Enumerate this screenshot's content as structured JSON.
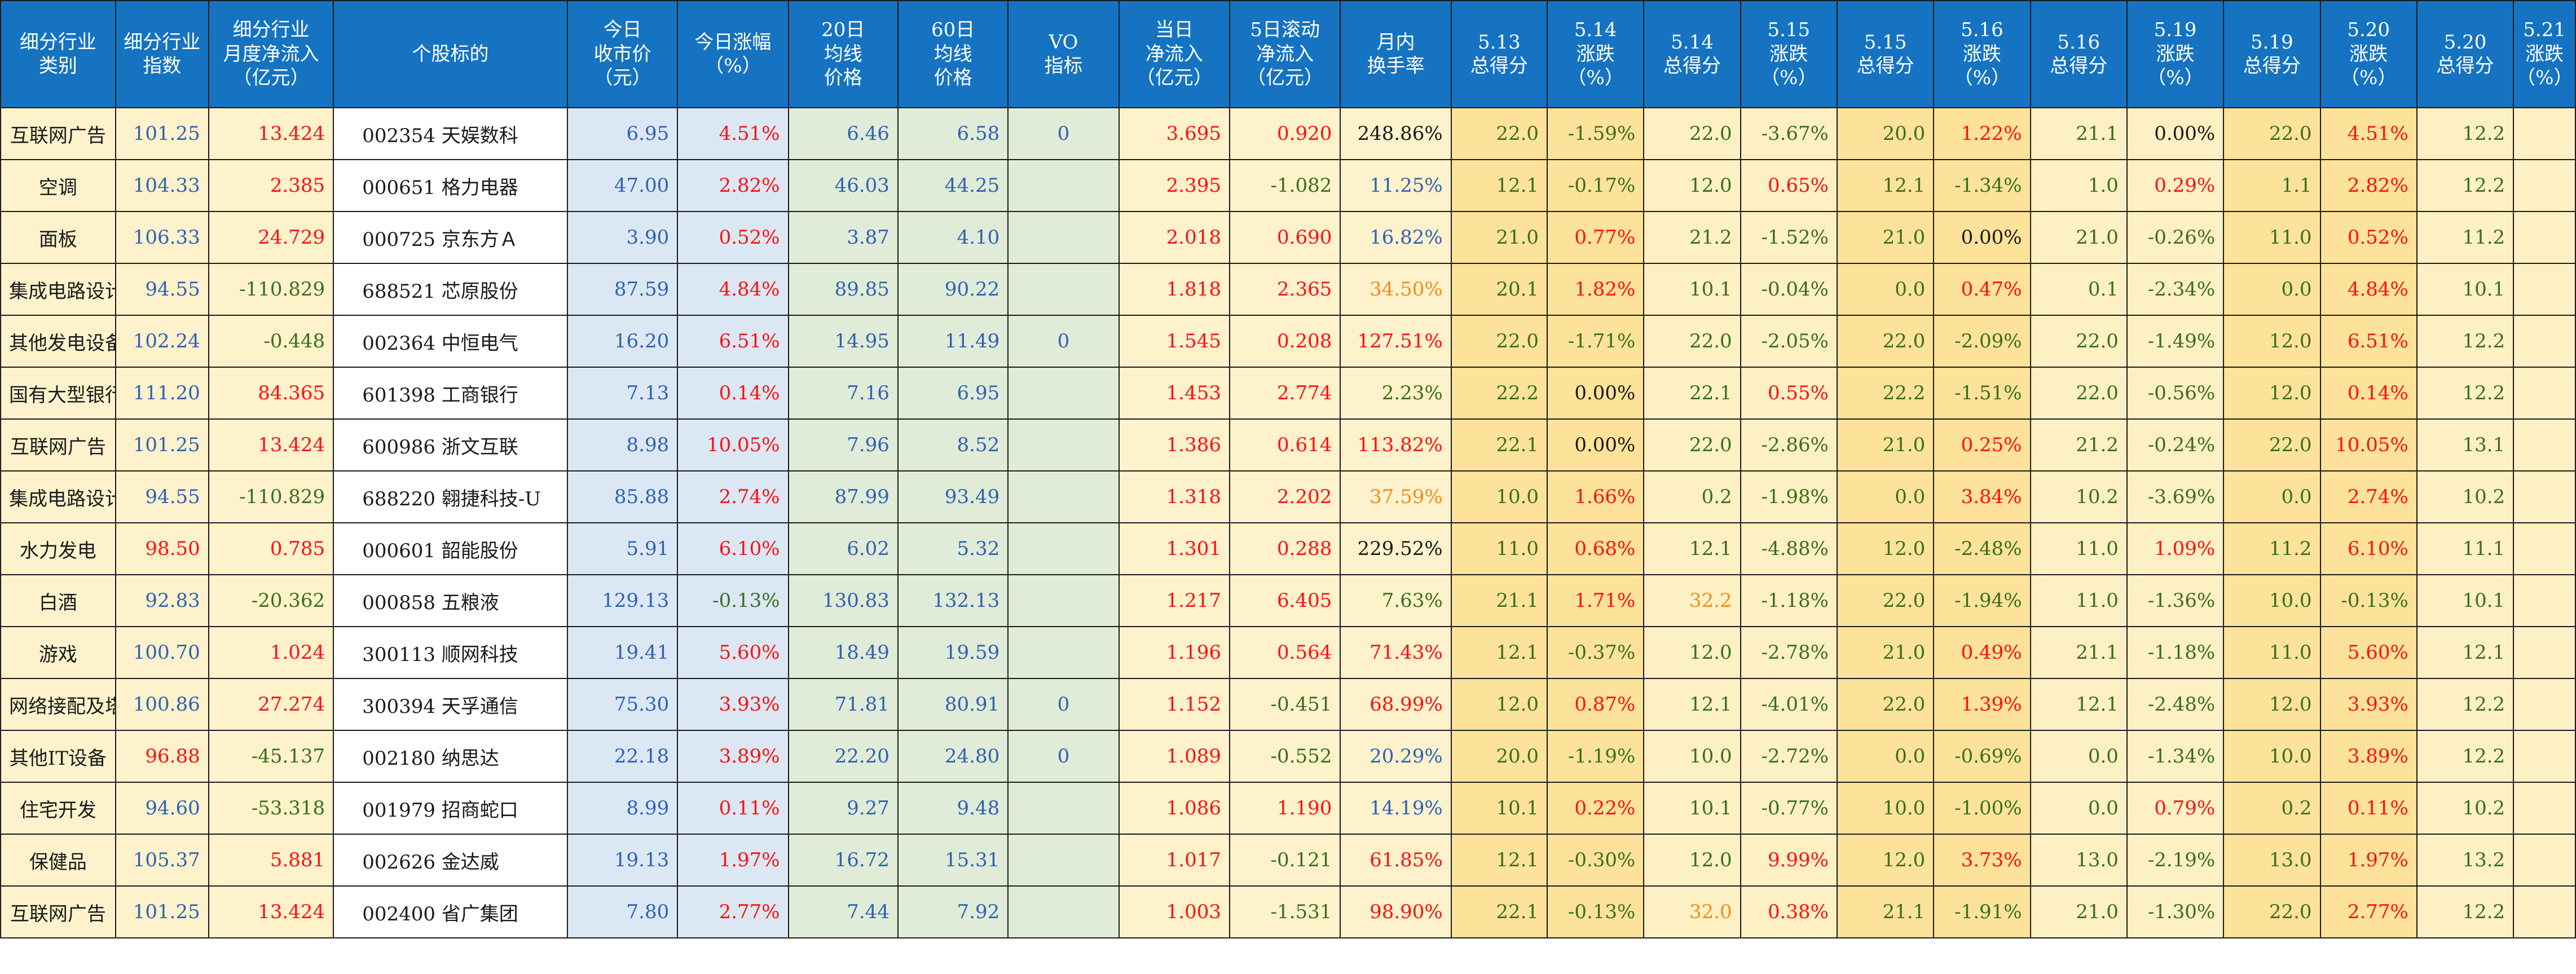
{
  "headers": [
    "细分行业\n类别",
    "细分行业\n指数",
    "细分行业\n月度净流入\n（亿元）",
    "个股标的",
    "今日\n收市价\n（元）",
    "今日涨幅\n（%）",
    "20日\n均线\n价格",
    "60日\n均线\n价格",
    "VO\n指标",
    "当日\n净流入\n（亿元）",
    "5日滚动\n净流入\n（亿元）",
    "月内\n换手率",
    "5.13\n总得分",
    "5.14\n涨跌\n（%）",
    "5.14\n总得分",
    "5.15\n涨跌\n（%）",
    "5.15\n总得分",
    "5.16\n涨跌\n（%）",
    "5.16\n总得分",
    "5.19\n涨跌\n（%）",
    "5.19\n总得分",
    "5.20\n涨跌\n（%）",
    "5.20\n总得分",
    "5.21\n涨跌\n（%）"
  ],
  "rows": [
    {
      "category": "互联网广告",
      "index": "101.25",
      "month_inflow": "13.424",
      "stock": "002354 天娱数科",
      "close": "6.95",
      "change": "4.51%",
      "ma20": "6.46",
      "ma60": "6.58",
      "vo": "0",
      "day_inflow": "3.695",
      "inflow_5d": "0.920",
      "turnover": "248.86%",
      "s513": "22.0",
      "c514": "-1.59%",
      "s514": "22.0",
      "c515": "-3.67%",
      "s515": "20.0",
      "c516": "1.22%",
      "s516": "21.1",
      "c519": "0.00%",
      "s519": "22.0",
      "c520": "4.51%",
      "s520": "12.2",
      "c521": ""
    },
    {
      "category": "空调",
      "index": "104.33",
      "month_inflow": "2.385",
      "stock": "000651 格力电器",
      "close": "47.00",
      "change": "2.82%",
      "ma20": "46.03",
      "ma60": "44.25",
      "vo": "",
      "day_inflow": "2.395",
      "inflow_5d": "-1.082",
      "turnover": "11.25%",
      "s513": "12.1",
      "c514": "-0.17%",
      "s514": "12.0",
      "c515": "0.65%",
      "s515": "12.1",
      "c516": "-1.34%",
      "s516": "1.0",
      "c519": "0.29%",
      "s519": "1.1",
      "c520": "2.82%",
      "s520": "12.2",
      "c521": ""
    },
    {
      "category": "面板",
      "index": "106.33",
      "month_inflow": "24.729",
      "stock": "000725 京东方Ａ",
      "close": "3.90",
      "change": "0.52%",
      "ma20": "3.87",
      "ma60": "4.10",
      "vo": "",
      "day_inflow": "2.018",
      "inflow_5d": "0.690",
      "turnover": "16.82%",
      "s513": "21.0",
      "c514": "0.77%",
      "s514": "21.2",
      "c515": "-1.52%",
      "s515": "21.0",
      "c516": "0.00%",
      "s516": "21.0",
      "c519": "-0.26%",
      "s519": "11.0",
      "c520": "0.52%",
      "s520": "11.2",
      "c521": ""
    },
    {
      "category": "集成电路设计",
      "index": "94.55",
      "month_inflow": "-110.829",
      "stock": "688521 芯原股份",
      "close": "87.59",
      "change": "4.84%",
      "ma20": "89.85",
      "ma60": "90.22",
      "vo": "",
      "day_inflow": "1.818",
      "inflow_5d": "2.365",
      "turnover": "34.50%",
      "s513": "20.1",
      "c514": "1.82%",
      "s514": "10.1",
      "c515": "-0.04%",
      "s515": "0.0",
      "c516": "0.47%",
      "s516": "0.1",
      "c519": "-2.34%",
      "s519": "0.0",
      "c520": "4.84%",
      "s520": "10.1",
      "c521": ""
    },
    {
      "category": "其他发电设备",
      "index": "102.24",
      "month_inflow": "-0.448",
      "stock": "002364 中恒电气",
      "close": "16.20",
      "change": "6.51%",
      "ma20": "14.95",
      "ma60": "11.49",
      "vo": "0",
      "day_inflow": "1.545",
      "inflow_5d": "0.208",
      "turnover": "127.51%",
      "s513": "22.0",
      "c514": "-1.71%",
      "s514": "22.0",
      "c515": "-2.05%",
      "s515": "22.0",
      "c516": "-2.09%",
      "s516": "22.0",
      "c519": "-1.49%",
      "s519": "12.0",
      "c520": "6.51%",
      "s520": "12.2",
      "c521": ""
    },
    {
      "category": "国有大型银行",
      "index": "111.20",
      "month_inflow": "84.365",
      "stock": "601398 工商银行",
      "close": "7.13",
      "change": "0.14%",
      "ma20": "7.16",
      "ma60": "6.95",
      "vo": "",
      "day_inflow": "1.453",
      "inflow_5d": "2.774",
      "turnover": "2.23%",
      "s513": "22.2",
      "c514": "0.00%",
      "s514": "22.1",
      "c515": "0.55%",
      "s515": "22.2",
      "c516": "-1.51%",
      "s516": "22.0",
      "c519": "-0.56%",
      "s519": "12.0",
      "c520": "0.14%",
      "s520": "12.2",
      "c521": ""
    },
    {
      "category": "互联网广告",
      "index": "101.25",
      "month_inflow": "13.424",
      "stock": "600986 浙文互联",
      "close": "8.98",
      "change": "10.05%",
      "ma20": "7.96",
      "ma60": "8.52",
      "vo": "",
      "day_inflow": "1.386",
      "inflow_5d": "0.614",
      "turnover": "113.82%",
      "s513": "22.1",
      "c514": "0.00%",
      "s514": "22.0",
      "c515": "-2.86%",
      "s515": "21.0",
      "c516": "0.25%",
      "s516": "21.2",
      "c519": "-0.24%",
      "s519": "22.0",
      "c520": "10.05%",
      "s520": "13.1",
      "c521": ""
    },
    {
      "category": "集成电路设计",
      "index": "94.55",
      "month_inflow": "-110.829",
      "stock": "688220 翱捷科技-U",
      "close": "85.88",
      "change": "2.74%",
      "ma20": "87.99",
      "ma60": "93.49",
      "vo": "",
      "day_inflow": "1.318",
      "inflow_5d": "2.202",
      "turnover": "37.59%",
      "s513": "10.0",
      "c514": "1.66%",
      "s514": "0.2",
      "c515": "-1.98%",
      "s515": "0.0",
      "c516": "3.84%",
      "s516": "10.2",
      "c519": "-3.69%",
      "s519": "0.0",
      "c520": "2.74%",
      "s520": "10.2",
      "c521": ""
    },
    {
      "category": "水力发电",
      "index": "98.50",
      "month_inflow": "0.785",
      "stock": "000601 韶能股份",
      "close": "5.91",
      "change": "6.10%",
      "ma20": "6.02",
      "ma60": "5.32",
      "vo": "",
      "day_inflow": "1.301",
      "inflow_5d": "0.288",
      "turnover": "229.52%",
      "s513": "11.0",
      "c514": "0.68%",
      "s514": "12.1",
      "c515": "-4.88%",
      "s515": "12.0",
      "c516": "-2.48%",
      "s516": "11.0",
      "c519": "1.09%",
      "s519": "11.2",
      "c520": "6.10%",
      "s520": "11.1",
      "c521": ""
    },
    {
      "category": "白酒",
      "index": "92.83",
      "month_inflow": "-20.362",
      "stock": "000858 五粮液",
      "close": "129.13",
      "change": "-0.13%",
      "ma20": "130.83",
      "ma60": "132.13",
      "vo": "",
      "day_inflow": "1.217",
      "inflow_5d": "6.405",
      "turnover": "7.63%",
      "s513": "21.1",
      "c514": "1.71%",
      "s514": "32.2",
      "c515": "-1.18%",
      "s515": "22.0",
      "c516": "-1.94%",
      "s516": "11.0",
      "c519": "-1.36%",
      "s519": "10.0",
      "c520": "-0.13%",
      "s520": "10.1",
      "c521": ""
    },
    {
      "category": "游戏",
      "index": "100.70",
      "month_inflow": "1.024",
      "stock": "300113 顺网科技",
      "close": "19.41",
      "change": "5.60%",
      "ma20": "18.49",
      "ma60": "19.59",
      "vo": "",
      "day_inflow": "1.196",
      "inflow_5d": "0.564",
      "turnover": "71.43%",
      "s513": "12.1",
      "c514": "-0.37%",
      "s514": "12.0",
      "c515": "-2.78%",
      "s515": "21.0",
      "c516": "0.49%",
      "s516": "21.1",
      "c519": "-1.18%",
      "s519": "11.0",
      "c520": "5.60%",
      "s520": "12.1",
      "c521": ""
    },
    {
      "category": "网络接配及塔设",
      "index": "100.86",
      "month_inflow": "27.274",
      "stock": "300394 天孚通信",
      "close": "75.30",
      "change": "3.93%",
      "ma20": "71.81",
      "ma60": "80.91",
      "vo": "0",
      "day_inflow": "1.152",
      "inflow_5d": "-0.451",
      "turnover": "68.99%",
      "s513": "12.0",
      "c514": "0.87%",
      "s514": "12.1",
      "c515": "-4.01%",
      "s515": "22.0",
      "c516": "1.39%",
      "s516": "12.1",
      "c519": "-2.48%",
      "s519": "12.0",
      "c520": "3.93%",
      "s520": "12.2",
      "c521": ""
    },
    {
      "category": "其他IT设备",
      "index": "96.88",
      "month_inflow": "-45.137",
      "stock": "002180 纳思达",
      "close": "22.18",
      "change": "3.89%",
      "ma20": "22.20",
      "ma60": "24.80",
      "vo": "0",
      "day_inflow": "1.089",
      "inflow_5d": "-0.552",
      "turnover": "20.29%",
      "s513": "20.0",
      "c514": "-1.19%",
      "s514": "10.0",
      "c515": "-2.72%",
      "s515": "0.0",
      "c516": "-0.69%",
      "s516": "0.0",
      "c519": "-1.34%",
      "s519": "10.0",
      "c520": "3.89%",
      "s520": "12.2",
      "c521": ""
    },
    {
      "category": "住宅开发",
      "index": "94.60",
      "month_inflow": "-53.318",
      "stock": "001979 招商蛇口",
      "close": "8.99",
      "change": "0.11%",
      "ma20": "9.27",
      "ma60": "9.48",
      "vo": "",
      "day_inflow": "1.086",
      "inflow_5d": "1.190",
      "turnover": "14.19%",
      "s513": "10.1",
      "c514": "0.22%",
      "s514": "10.1",
      "c515": "-0.77%",
      "s515": "10.0",
      "c516": "-1.00%",
      "s516": "0.0",
      "c519": "0.79%",
      "s519": "0.2",
      "c520": "0.11%",
      "s520": "10.2",
      "c521": ""
    },
    {
      "category": "保健品",
      "index": "105.37",
      "month_inflow": "5.881",
      "stock": "002626 金达威",
      "close": "19.13",
      "change": "1.97%",
      "ma20": "16.72",
      "ma60": "15.31",
      "vo": "",
      "day_inflow": "1.017",
      "inflow_5d": "-0.121",
      "turnover": "61.85%",
      "s513": "12.1",
      "c514": "-0.30%",
      "s514": "12.0",
      "c515": "9.99%",
      "s515": "12.0",
      "c516": "3.73%",
      "s516": "13.0",
      "c519": "-2.19%",
      "s519": "13.0",
      "c520": "1.97%",
      "s520": "13.2",
      "c521": ""
    },
    {
      "category": "互联网广告",
      "index": "101.25",
      "month_inflow": "13.424",
      "stock": "002400 省广集团",
      "close": "7.80",
      "change": "2.77%",
      "ma20": "7.44",
      "ma60": "7.92",
      "vo": "",
      "day_inflow": "1.003",
      "inflow_5d": "-1.531",
      "turnover": "98.90%",
      "s513": "22.1",
      "c514": "-0.13%",
      "s514": "32.0",
      "c515": "0.38%",
      "s515": "21.1",
      "c516": "-1.91%",
      "s516": "21.0",
      "c519": "-1.30%",
      "s519": "22.0",
      "c520": "2.77%",
      "s520": "12.2",
      "c521": ""
    }
  ],
  "colors": {
    "header_bg": "#1573c2",
    "header_text": "#ffffff",
    "red": "#ff1010",
    "green": "#3a6e1c",
    "blue": "#2f61b4",
    "orange": "#ef8e1c",
    "cream": "#fdf2cc",
    "light_blue": "#dbe8f4",
    "light_green": "#e0ecd7",
    "gold": "#fde29a"
  }
}
